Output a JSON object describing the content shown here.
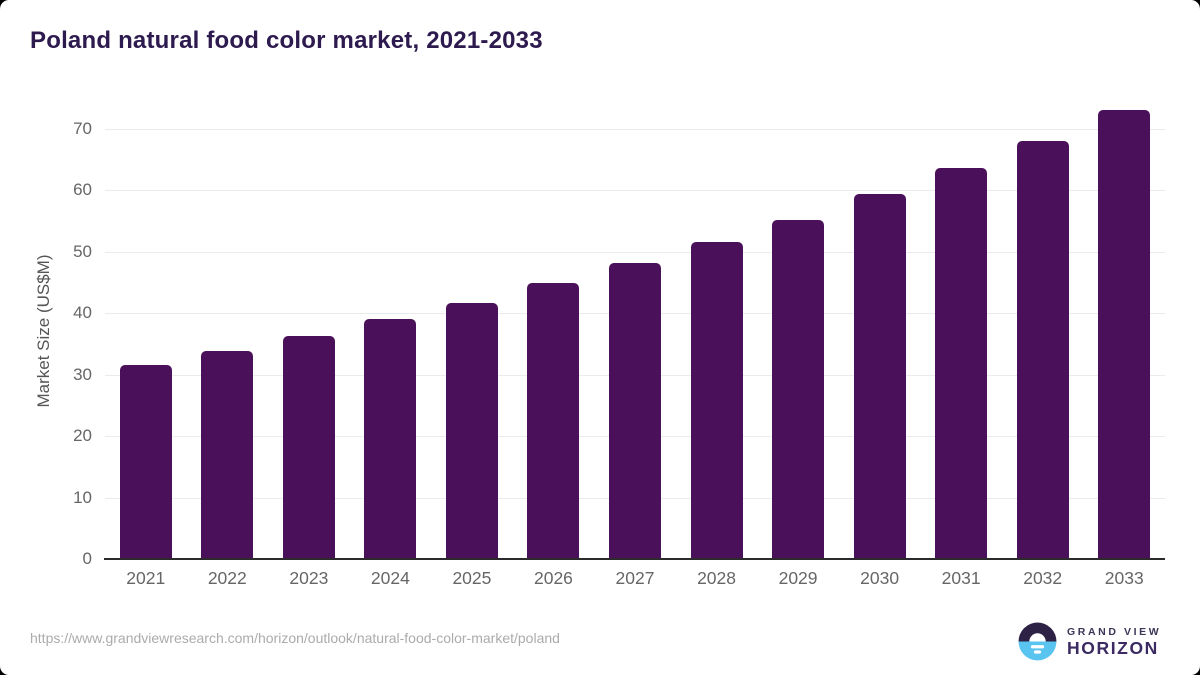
{
  "header": {
    "title": "Poland natural food color market, 2021-2033"
  },
  "chart_data": {
    "type": "bar",
    "title": "Poland natural food color market, 2021-2033",
    "xlabel": "",
    "ylabel": "Market Size (US$M)",
    "categories": [
      "2021",
      "2022",
      "2023",
      "2024",
      "2025",
      "2026",
      "2027",
      "2028",
      "2029",
      "2030",
      "2031",
      "2032",
      "2033"
    ],
    "values": [
      31.6,
      33.9,
      36.3,
      39.0,
      41.7,
      44.8,
      48.1,
      51.5,
      55.2,
      59.3,
      63.5,
      68.0,
      73.0
    ],
    "yticks": [
      0,
      10,
      20,
      30,
      40,
      50,
      60,
      70
    ],
    "ylim": [
      0,
      75
    ],
    "grid": true,
    "legend": false,
    "bar_color": "#4a1059"
  },
  "footer": {
    "source_url": "https://www.grandviewresearch.com/horizon/outlook/natural-food-color-market/poland",
    "logo": {
      "top": "GRAND VIEW",
      "bottom": "HORIZON"
    }
  },
  "colors": {
    "bar": "#4a1059",
    "title_text": "#2d1a4e",
    "axis_text": "#666666",
    "ylabel_text": "#555555",
    "gridline": "#ebebeb",
    "axis_line": "#2b2b2b",
    "url_text": "#ababab",
    "logo_dark": "#2d2145",
    "logo_blue": "#5ac4f1",
    "logo_text_top": "#3d3457",
    "logo_text_bottom": "#3c2a63"
  }
}
